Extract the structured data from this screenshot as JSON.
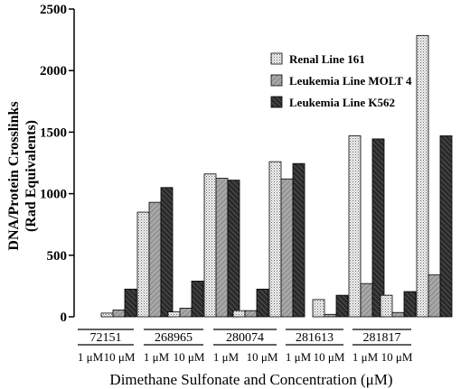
{
  "chart_data": {
    "type": "bar",
    "title": "",
    "ylabel_line1": "DNA/Protein Crosslinks",
    "ylabel_line2": "(Rad Equivalents)",
    "xlabel": "Dimethane Sulfonate and Concentration (μM)",
    "ylim": [
      0,
      2500
    ],
    "yticks": [
      0,
      500,
      1000,
      1500,
      2000,
      2500
    ],
    "groups": [
      "72151",
      "268965",
      "280074",
      "281613",
      "281817"
    ],
    "concentrations": [
      "1 μM",
      "10 μM"
    ],
    "legend_position": "top-right",
    "grid": false,
    "series": [
      {
        "name": "Renal Line 161",
        "pattern": "dots",
        "values": [
          [
            30,
            850
          ],
          [
            40,
            1160
          ],
          [
            50,
            1260
          ],
          [
            140,
            1470
          ],
          [
            175,
            2285
          ]
        ]
      },
      {
        "name": "Leukemia Line MOLT 4",
        "pattern": "gray",
        "values": [
          [
            55,
            930
          ],
          [
            70,
            1125
          ],
          [
            50,
            1120
          ],
          [
            20,
            270
          ],
          [
            35,
            340
          ]
        ]
      },
      {
        "name": "Leukemia Line K562",
        "pattern": "dark-hatch",
        "values": [
          [
            225,
            1050
          ],
          [
            290,
            1110
          ],
          [
            225,
            1245
          ],
          [
            175,
            1445
          ],
          [
            205,
            1470
          ]
        ]
      }
    ]
  }
}
